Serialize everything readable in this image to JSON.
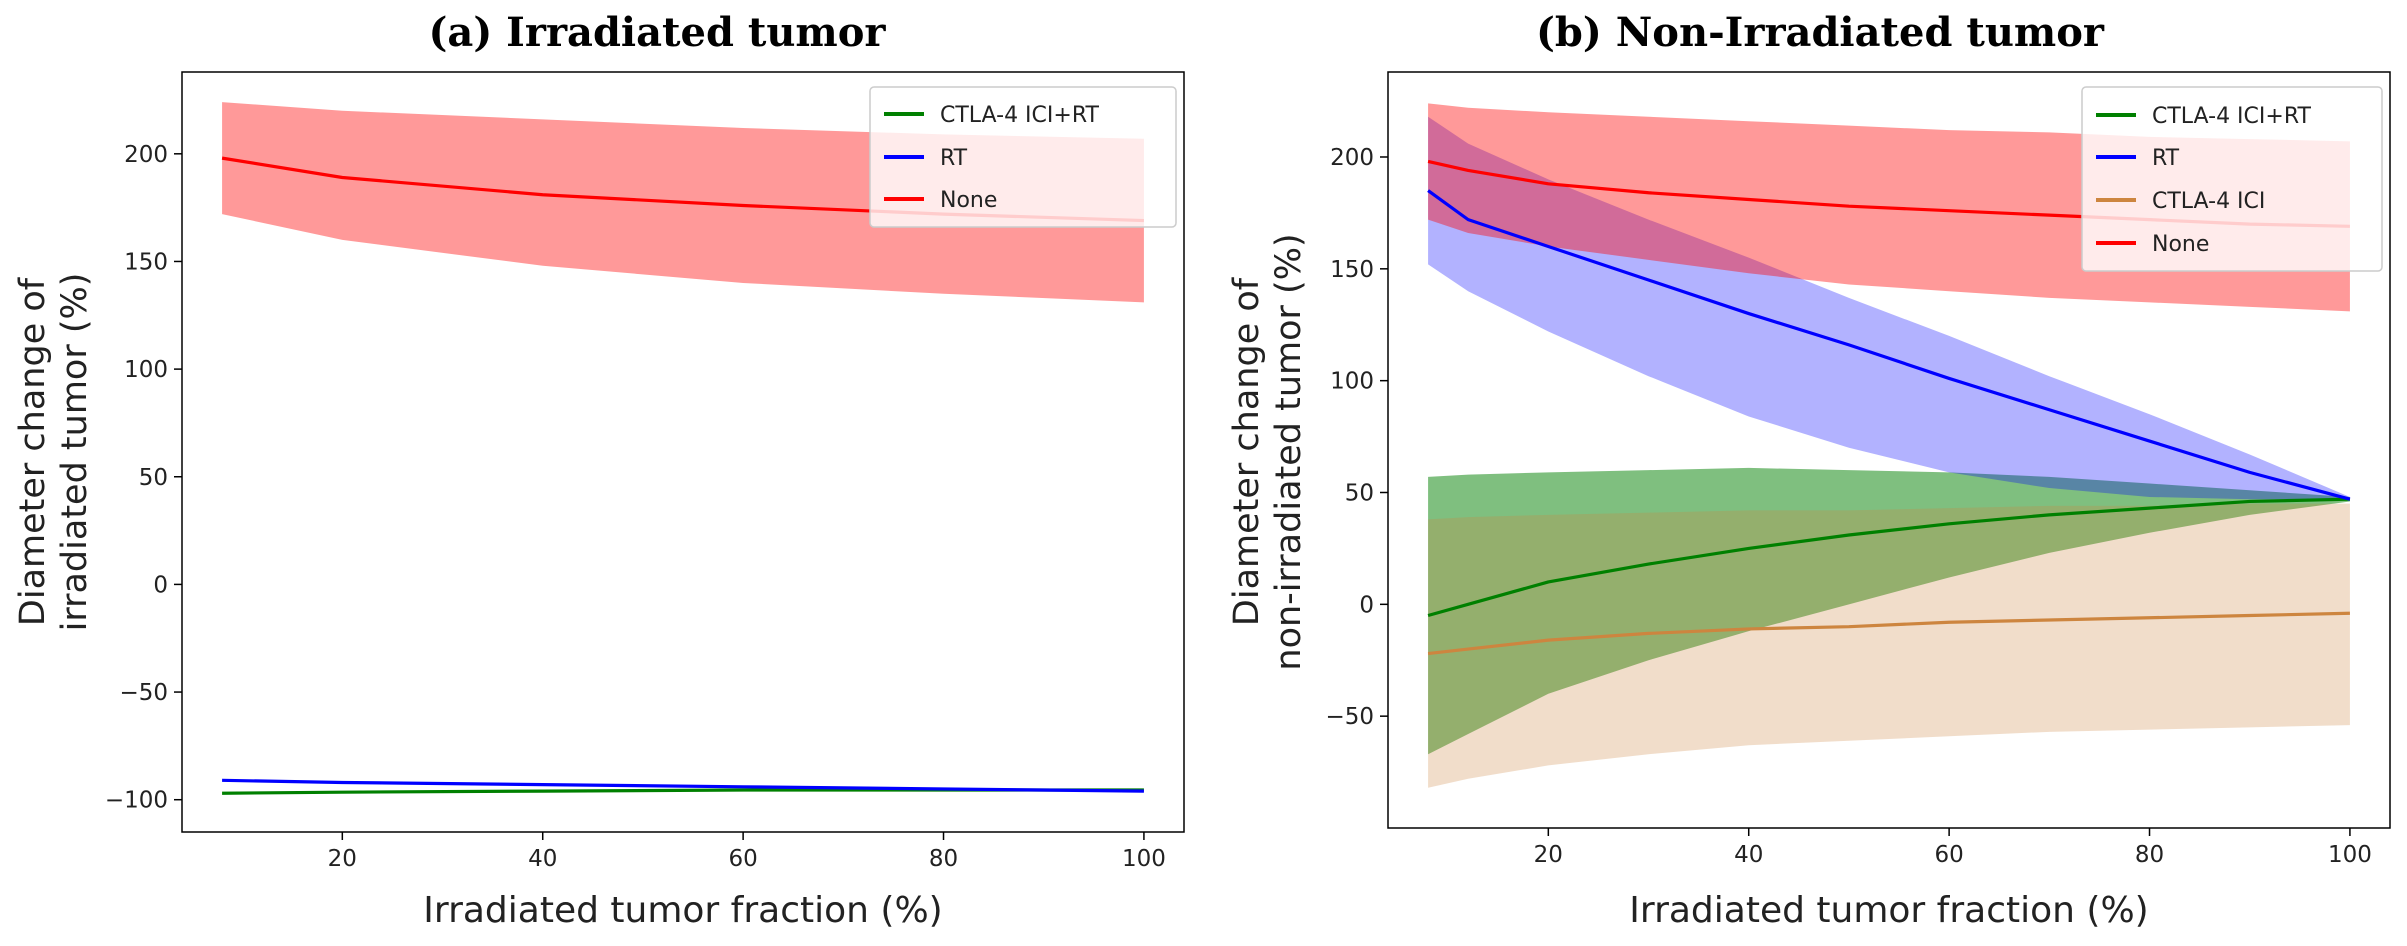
{
  "chart_data": [
    {
      "id": "a",
      "type": "line",
      "title": "(a) Irradiated tumor",
      "xlabel": "Irradiated tumor fraction (%)",
      "ylabel": [
        "Diameter change of",
        "irradiated tumor (%)"
      ],
      "xlim": [
        4,
        104
      ],
      "ylim": [
        -115,
        238
      ],
      "xticks": [
        20,
        40,
        60,
        80,
        100
      ],
      "yticks": [
        -100,
        -50,
        0,
        50,
        100,
        150,
        200
      ],
      "ytick_labels": [
        "−100",
        "−50",
        "0",
        "50",
        "100",
        "150",
        "200"
      ],
      "legend_position": "top-right",
      "x": [
        8,
        20,
        40,
        60,
        80,
        100
      ],
      "series": [
        {
          "name": "CTLA-4 ICI+RT",
          "color": "#008000",
          "values": [
            -97,
            -96.5,
            -96,
            -95.5,
            -95.5,
            -95.5
          ]
        },
        {
          "name": "RT",
          "color": "#0000ff",
          "values": [
            -91,
            -92,
            -93,
            -94,
            -95,
            -96
          ]
        },
        {
          "name": "None",
          "color": "#ff0000",
          "values": [
            198,
            189,
            181,
            176,
            172,
            169
          ],
          "band_upper": [
            224,
            220,
            216,
            212,
            209,
            207
          ],
          "band_lower": [
            172,
            160,
            148,
            140,
            135,
            131
          ],
          "band_color": "#ff0000",
          "band_opacity": 0.4
        }
      ]
    },
    {
      "id": "b",
      "type": "line",
      "title": "(b) Non-Irradiated tumor",
      "xlabel": "Irradiated tumor fraction (%)",
      "ylabel": [
        "Diameter change of",
        "non-irradiated tumor (%)"
      ],
      "xlim": [
        4,
        104
      ],
      "ylim": [
        -100,
        238
      ],
      "xticks": [
        20,
        40,
        60,
        80,
        100
      ],
      "yticks": [
        -50,
        0,
        50,
        100,
        150,
        200
      ],
      "ytick_labels": [
        "−50",
        "0",
        "50",
        "100",
        "150",
        "200"
      ],
      "legend_position": "top-right",
      "x": [
        8,
        12,
        20,
        30,
        40,
        50,
        60,
        70,
        80,
        90,
        100
      ],
      "series": [
        {
          "name": "CTLA-4 ICI+RT",
          "color": "#008000",
          "values": [
            -5,
            0,
            10,
            18,
            25,
            31,
            36,
            40,
            43,
            46,
            47
          ],
          "band_upper": [
            57,
            58,
            59,
            60,
            61,
            60,
            59,
            57,
            54,
            51,
            48
          ],
          "band_lower": [
            -67,
            -58,
            -40,
            -25,
            -12,
            0,
            12,
            23,
            32,
            40,
            46
          ],
          "band_color": "#008000",
          "band_opacity": 0.5
        },
        {
          "name": "RT",
          "color": "#0000ff",
          "values": [
            185,
            172,
            160,
            145,
            130,
            116,
            101,
            87,
            73,
            59,
            47
          ],
          "band_upper": [
            218,
            206,
            190,
            172,
            155,
            137,
            120,
            102,
            85,
            67,
            48
          ],
          "band_lower": [
            152,
            140,
            122,
            102,
            84,
            70,
            59,
            52,
            48,
            47,
            47
          ],
          "band_color": "#0000ff",
          "band_opacity": 0.3
        },
        {
          "name": "CTLA-4 ICI",
          "color": "#cd853f",
          "values": [
            -22,
            -20,
            -16,
            -13,
            -11,
            -10,
            -8,
            -7,
            -6,
            -5,
            -4
          ],
          "band_upper": [
            38,
            39,
            40,
            41,
            42,
            42,
            43,
            44,
            44,
            45,
            45
          ],
          "band_lower": [
            -82,
            -78,
            -72,
            -67,
            -63,
            -61,
            -59,
            -57,
            -56,
            -55,
            -54
          ],
          "band_color": "#cd853f",
          "band_opacity": 0.28
        },
        {
          "name": "None",
          "color": "#ff0000",
          "values": [
            198,
            194,
            188,
            184,
            181,
            178,
            176,
            174,
            172,
            170,
            169
          ],
          "band_upper": [
            224,
            222,
            220,
            218,
            216,
            214,
            212,
            211,
            209,
            208,
            207
          ],
          "band_lower": [
            172,
            166,
            160,
            154,
            148,
            143,
            140,
            137,
            135,
            133,
            131
          ],
          "band_color": "#ff0000",
          "band_opacity": 0.4
        }
      ]
    }
  ]
}
